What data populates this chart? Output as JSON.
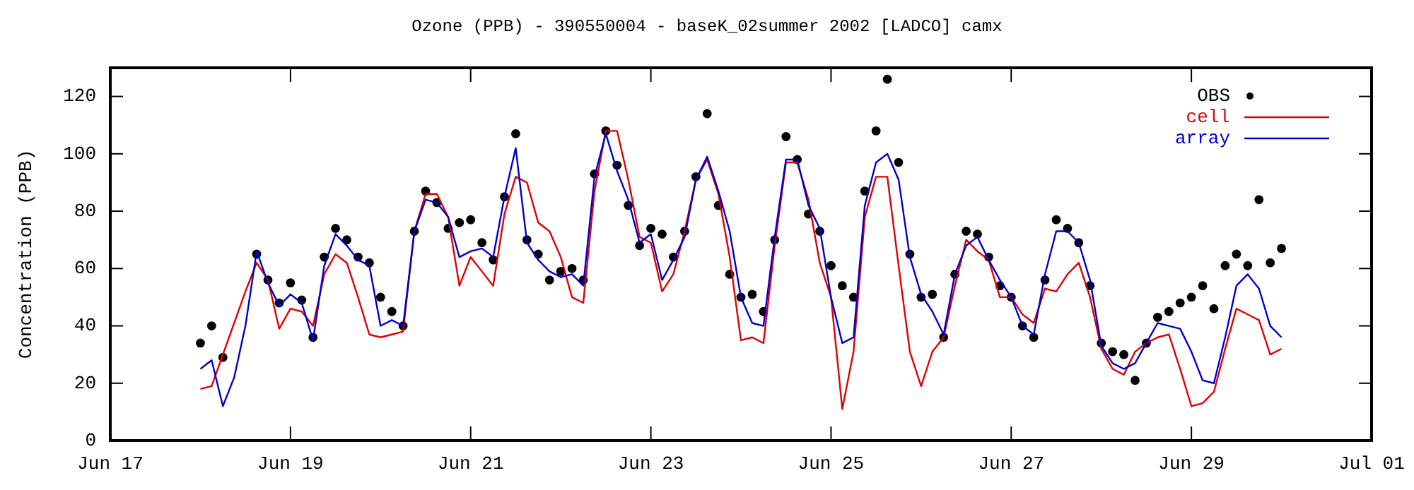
{
  "chart_data": {
    "type": "line",
    "title": "Ozone (PPB) - 390550004 - baseK_02summer 2002 [LADCO] camx",
    "ylabel": "Concentration (PPB)",
    "x": [
      "2002-06-18T00:00",
      "2002-06-18T03:00",
      "2002-06-18T06:00",
      "2002-06-18T09:00",
      "2002-06-18T12:00",
      "2002-06-18T15:00",
      "2002-06-18T18:00",
      "2002-06-18T21:00",
      "2002-06-19T00:00",
      "2002-06-19T03:00",
      "2002-06-19T06:00",
      "2002-06-19T09:00",
      "2002-06-19T12:00",
      "2002-06-19T15:00",
      "2002-06-19T18:00",
      "2002-06-19T21:00",
      "2002-06-20T00:00",
      "2002-06-20T03:00",
      "2002-06-20T06:00",
      "2002-06-20T09:00",
      "2002-06-20T12:00",
      "2002-06-20T15:00",
      "2002-06-20T18:00",
      "2002-06-20T21:00",
      "2002-06-21T00:00",
      "2002-06-21T03:00",
      "2002-06-21T06:00",
      "2002-06-21T09:00",
      "2002-06-21T12:00",
      "2002-06-21T15:00",
      "2002-06-21T18:00",
      "2002-06-21T21:00",
      "2002-06-22T00:00",
      "2002-06-22T03:00",
      "2002-06-22T06:00",
      "2002-06-22T09:00",
      "2002-06-22T12:00",
      "2002-06-22T15:00",
      "2002-06-22T18:00",
      "2002-06-22T21:00",
      "2002-06-23T00:00",
      "2002-06-23T03:00",
      "2002-06-23T06:00",
      "2002-06-23T09:00",
      "2002-06-23T12:00",
      "2002-06-23T15:00",
      "2002-06-23T18:00",
      "2002-06-23T21:00",
      "2002-06-24T00:00",
      "2002-06-24T03:00",
      "2002-06-24T06:00",
      "2002-06-24T09:00",
      "2002-06-24T12:00",
      "2002-06-24T15:00",
      "2002-06-24T18:00",
      "2002-06-24T21:00",
      "2002-06-25T00:00",
      "2002-06-25T03:00",
      "2002-06-25T06:00",
      "2002-06-25T09:00",
      "2002-06-25T12:00",
      "2002-06-25T15:00",
      "2002-06-25T18:00",
      "2002-06-25T21:00",
      "2002-06-26T00:00",
      "2002-06-26T03:00",
      "2002-06-26T06:00",
      "2002-06-26T09:00",
      "2002-06-26T12:00",
      "2002-06-26T15:00",
      "2002-06-26T18:00",
      "2002-06-26T21:00",
      "2002-06-27T00:00",
      "2002-06-27T03:00",
      "2002-06-27T06:00",
      "2002-06-27T09:00",
      "2002-06-27T12:00",
      "2002-06-27T15:00",
      "2002-06-27T18:00",
      "2002-06-27T21:00",
      "2002-06-28T00:00",
      "2002-06-28T03:00",
      "2002-06-28T06:00",
      "2002-06-28T09:00",
      "2002-06-28T12:00",
      "2002-06-28T15:00",
      "2002-06-28T18:00",
      "2002-06-28T21:00",
      "2002-06-29T00:00",
      "2002-06-29T03:00",
      "2002-06-29T06:00",
      "2002-06-29T09:00",
      "2002-06-29T12:00",
      "2002-06-29T15:00",
      "2002-06-29T18:00",
      "2002-06-29T21:00",
      "2002-06-30T00:00"
    ],
    "series": [
      {
        "name": "OBS",
        "type": "scatter",
        "marker": "circle",
        "color": "#000000",
        "values": [
          34,
          40,
          29,
          null,
          null,
          65,
          56,
          48,
          55,
          49,
          36,
          64,
          74,
          70,
          64,
          62,
          50,
          45,
          40,
          73,
          87,
          83,
          74,
          76,
          77,
          69,
          63,
          85,
          107,
          70,
          65,
          56,
          59,
          60,
          56,
          93,
          108,
          96,
          82,
          68,
          74,
          72,
          64,
          73,
          92,
          114,
          82,
          58,
          50,
          51,
          45,
          70,
          106,
          98,
          79,
          73,
          61,
          54,
          50,
          87,
          108,
          126,
          97,
          65,
          50,
          51,
          36,
          58,
          73,
          72,
          64,
          54,
          50,
          40,
          36,
          56,
          77,
          74,
          69,
          54,
          34,
          31,
          30,
          21,
          34,
          43,
          45,
          48,
          50,
          54,
          46,
          61,
          65,
          61,
          84,
          62,
          67
        ]
      },
      {
        "name": "cell",
        "type": "line",
        "color": "#e00000",
        "values": [
          18,
          19,
          30,
          41,
          52,
          62,
          56,
          39,
          46,
          45,
          40,
          58,
          65,
          62,
          50,
          37,
          36,
          37,
          38,
          73,
          86,
          86,
          78,
          54,
          64,
          59,
          54,
          79,
          92,
          90,
          76,
          73,
          64,
          50,
          48,
          87,
          108,
          108,
          91,
          71,
          69,
          52,
          58,
          73,
          91,
          98,
          86,
          64,
          35,
          36,
          34,
          68,
          97,
          97,
          84,
          62,
          50,
          11,
          31,
          78,
          92,
          92,
          61,
          31,
          19,
          31,
          36,
          54,
          70,
          66,
          63,
          50,
          50,
          44,
          41,
          53,
          52,
          58,
          62,
          50,
          32,
          25,
          23,
          31,
          34,
          36,
          37,
          25,
          12,
          13,
          17,
          32,
          46,
          44,
          42,
          30,
          32
        ]
      },
      {
        "name": "array",
        "type": "line",
        "color": "#0000cc",
        "values": [
          25,
          28,
          12,
          22,
          40,
          66,
          55,
          47,
          51,
          48,
          35,
          61,
          72,
          68,
          63,
          61,
          40,
          42,
          40,
          73,
          84,
          83,
          78,
          64,
          66,
          67,
          64,
          85,
          102,
          69,
          63,
          59,
          57,
          58,
          54,
          92,
          107,
          94,
          84,
          69,
          72,
          56,
          63,
          71,
          91,
          99,
          87,
          73,
          50,
          41,
          40,
          71,
          98,
          98,
          82,
          74,
          50,
          34,
          36,
          82,
          97,
          100,
          91,
          64,
          51,
          45,
          37,
          58,
          68,
          71,
          63,
          56,
          50,
          40,
          37,
          58,
          73,
          73,
          69,
          56,
          33,
          27,
          25,
          27,
          34,
          41,
          40,
          39,
          31,
          21,
          20,
          36,
          54,
          58,
          53,
          40,
          36
        ]
      }
    ],
    "xlim": [
      "2002-06-17",
      "2002-07-01"
    ],
    "xticks": [
      {
        "value": "2002-06-17",
        "label": "Jun 17"
      },
      {
        "value": "2002-06-19",
        "label": "Jun 19"
      },
      {
        "value": "2002-06-21",
        "label": "Jun 21"
      },
      {
        "value": "2002-06-23",
        "label": "Jun 23"
      },
      {
        "value": "2002-06-25",
        "label": "Jun 25"
      },
      {
        "value": "2002-06-27",
        "label": "Jun 27"
      },
      {
        "value": "2002-06-29",
        "label": "Jun 29"
      },
      {
        "value": "2002-07-01",
        "label": "Jul 01"
      }
    ],
    "ylim": [
      0,
      130
    ],
    "yticks": [
      0,
      20,
      40,
      60,
      80,
      100,
      120
    ],
    "legend": "top right"
  }
}
